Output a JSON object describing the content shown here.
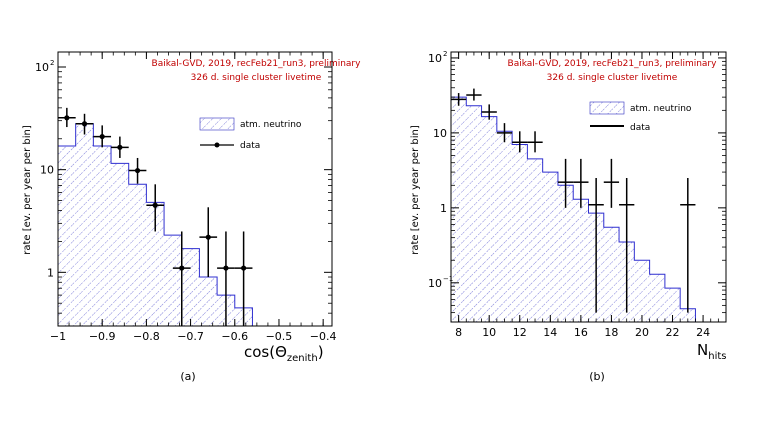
{
  "chart_data": [
    {
      "type": "histogram",
      "panel_label": "(a)",
      "header_line1": "Baikal-GVD, 2019, recFeb21_run3, preliminary",
      "header_line2": "326 d. single cluster livetime",
      "ylabel": "rate [ev. per year per bin]",
      "xlabel_main": "cos(Θ",
      "xlabel_sub": "zenith",
      "xlabel_close": ")",
      "xlim": [
        -1.0,
        -0.38
      ],
      "ylog": true,
      "ylim": [
        0.3,
        140
      ],
      "xticks": [
        {
          "v": -1,
          "label": "−1"
        },
        {
          "v": -0.9,
          "label": "−0.9"
        },
        {
          "v": -0.8,
          "label": "−0.8"
        },
        {
          "v": -0.7,
          "label": "−0.7"
        },
        {
          "v": -0.6,
          "label": "−0.6"
        },
        {
          "v": -0.5,
          "label": "−0.5"
        },
        {
          "v": -0.4,
          "label": "−0.4"
        }
      ],
      "yticks": [
        {
          "v": 1,
          "label": "1"
        },
        {
          "v": 10,
          "label": "10"
        },
        {
          "v": 100,
          "label": "10",
          "sup": "2"
        }
      ],
      "legend": {
        "mc": "atm. neutrino",
        "data": "data"
      },
      "mc_edges": [
        -1.0,
        -0.96,
        -0.92,
        -0.88,
        -0.84,
        -0.8,
        -0.76,
        -0.72,
        -0.68,
        -0.64,
        -0.6,
        -0.56,
        -0.52,
        -0.48
      ],
      "mc_values": [
        17,
        28,
        17,
        11.5,
        7.2,
        4.8,
        2.3,
        1.7,
        0.9,
        0.6,
        0.45,
        0.3,
        0.3
      ],
      "data_points": [
        {
          "x": -0.98,
          "xerr": 0.02,
          "y": 32,
          "lo": 26,
          "hi": 40
        },
        {
          "x": -0.94,
          "xerr": 0.02,
          "y": 28,
          "lo": 22,
          "hi": 35
        },
        {
          "x": -0.9,
          "xerr": 0.02,
          "y": 21,
          "lo": 16.5,
          "hi": 27
        },
        {
          "x": -0.86,
          "xerr": 0.02,
          "y": 16.5,
          "lo": 13,
          "hi": 21
        },
        {
          "x": -0.82,
          "xerr": 0.02,
          "y": 9.8,
          "lo": 7.3,
          "hi": 13
        },
        {
          "x": -0.78,
          "xerr": 0.02,
          "y": 4.5,
          "lo": 2.5,
          "hi": 7.2
        },
        {
          "x": -0.72,
          "xerr": 0.02,
          "y": 1.1,
          "lo": 0.3,
          "hi": 2.5
        },
        {
          "x": -0.66,
          "xerr": 0.02,
          "y": 2.2,
          "lo": 0.9,
          "hi": 4.3
        },
        {
          "x": -0.62,
          "xerr": 0.02,
          "y": 1.1,
          "lo": 0.3,
          "hi": 2.5
        },
        {
          "x": -0.58,
          "xerr": 0.02,
          "y": 1.1,
          "lo": 0.3,
          "hi": 2.5
        }
      ]
    },
    {
      "type": "histogram",
      "panel_label": "(b)",
      "header_line1": "Baikal-GVD, 2019, recFeb21_run3, preliminary",
      "header_line2": "326 d. single cluster livetime",
      "ylabel": "rate [ev. per year per bin]",
      "xlabel_main": "N",
      "xlabel_sub": "hits",
      "xlabel_close": "",
      "xlim": [
        7.5,
        25.5
      ],
      "ylog": true,
      "ylim": [
        0.03,
        120
      ],
      "xticks": [
        {
          "v": 8,
          "label": "8"
        },
        {
          "v": 10,
          "label": "10"
        },
        {
          "v": 12,
          "label": "12"
        },
        {
          "v": 14,
          "label": "14"
        },
        {
          "v": 16,
          "label": "16"
        },
        {
          "v": 18,
          "label": "18"
        },
        {
          "v": 20,
          "label": "20"
        },
        {
          "v": 22,
          "label": "22"
        },
        {
          "v": 24,
          "label": "24"
        }
      ],
      "yticks": [
        {
          "v": 0.1,
          "label": "10",
          "sup": "−1"
        },
        {
          "v": 1,
          "label": "1"
        },
        {
          "v": 10,
          "label": "10"
        },
        {
          "v": 100,
          "label": "10",
          "sup": "2"
        }
      ],
      "legend": {
        "mc": "atm. neutrino",
        "data": "data"
      },
      "mc_edges": [
        7.5,
        8.5,
        9.5,
        10.5,
        11.5,
        12.5,
        13.5,
        14.5,
        15.5,
        16.5,
        17.5,
        18.5,
        19.5,
        20.5,
        21.5,
        22.5,
        23.5
      ],
      "mc_values": [
        30,
        23,
        16.5,
        10.5,
        7,
        4.5,
        3,
        2,
        1.3,
        0.85,
        0.55,
        0.35,
        0.2,
        0.13,
        0.085,
        0.045
      ],
      "data_points": [
        {
          "x": 8,
          "xerr": 0.5,
          "y": 28,
          "lo": 23,
          "hi": 34
        },
        {
          "x": 9,
          "xerr": 0.5,
          "y": 32,
          "lo": 27,
          "hi": 39
        },
        {
          "x": 10,
          "xerr": 0.5,
          "y": 19,
          "lo": 15,
          "hi": 24
        },
        {
          "x": 11,
          "xerr": 0.5,
          "y": 10,
          "lo": 7.5,
          "hi": 13.5
        },
        {
          "x": 12,
          "xerr": 0.5,
          "y": 7.5,
          "lo": 5.5,
          "hi": 10.5
        },
        {
          "x": 13,
          "xerr": 0.5,
          "y": 7.5,
          "lo": 5.5,
          "hi": 10.5
        },
        {
          "x": 15,
          "xerr": 0.5,
          "y": 2.2,
          "lo": 1,
          "hi": 4.5
        },
        {
          "x": 16,
          "xerr": 0.5,
          "y": 2.2,
          "lo": 1,
          "hi": 4.5
        },
        {
          "x": 17,
          "xerr": 0.5,
          "y": 1.1,
          "lo": 0.04,
          "hi": 2.5
        },
        {
          "x": 18,
          "xerr": 0.5,
          "y": 2.2,
          "lo": 1,
          "hi": 4.5
        },
        {
          "x": 19,
          "xerr": 0.5,
          "y": 1.1,
          "lo": 0.04,
          "hi": 2.5
        },
        {
          "x": 23,
          "xerr": 0.5,
          "y": 1.1,
          "lo": 0.04,
          "hi": 2.5
        }
      ]
    }
  ]
}
